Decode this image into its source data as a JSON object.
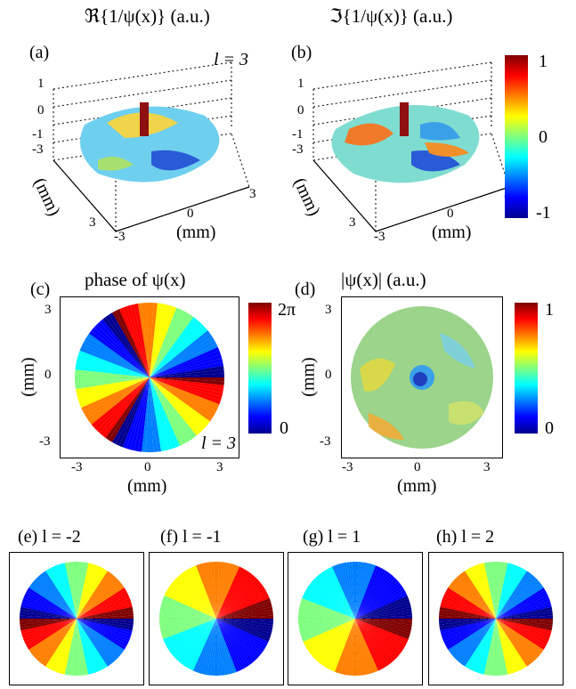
{
  "top": {
    "title_a": "ℜ{1/ψ(x)} (a.u.)",
    "title_b": "ℑ{1/ψ(x)} (a.u.)",
    "panel_a": "(a)",
    "panel_b": "(b)",
    "l_label": "l = 3",
    "z_ticks": [
      "1",
      "0",
      "-1"
    ],
    "depth_ticks": [
      "-3",
      "3"
    ],
    "x_ticks": [
      "-3",
      "0",
      "3"
    ],
    "axis_unit": "(mm)",
    "colorbar_ticks": [
      "1",
      "0",
      "-1"
    ]
  },
  "middle": {
    "title_c": "phase of ψ(x)",
    "title_d": "|ψ(x)| (a.u.)",
    "panel_c": "(c)",
    "panel_d": "(d)",
    "l_label": "l = 3",
    "y_ticks": [
      "3",
      "0",
      "-3"
    ],
    "x_ticks": [
      "-3",
      "0",
      "3"
    ],
    "axis_unit": "(mm)",
    "colorbar_c_ticks": [
      "2π",
      "0"
    ],
    "colorbar_d_ticks": [
      "1",
      "0"
    ]
  },
  "bottom": {
    "labels": [
      "(e) l = -2",
      "(f) l = -1",
      "(g) l = 1",
      "(h) l = 2"
    ],
    "charges": [
      -2,
      -1,
      1,
      2
    ]
  },
  "colormap": [
    "#00008f",
    "#0000ff",
    "#007fff",
    "#00ffff",
    "#7fff7f",
    "#ffff00",
    "#ff7f00",
    "#ff0000",
    "#7f0000"
  ]
}
